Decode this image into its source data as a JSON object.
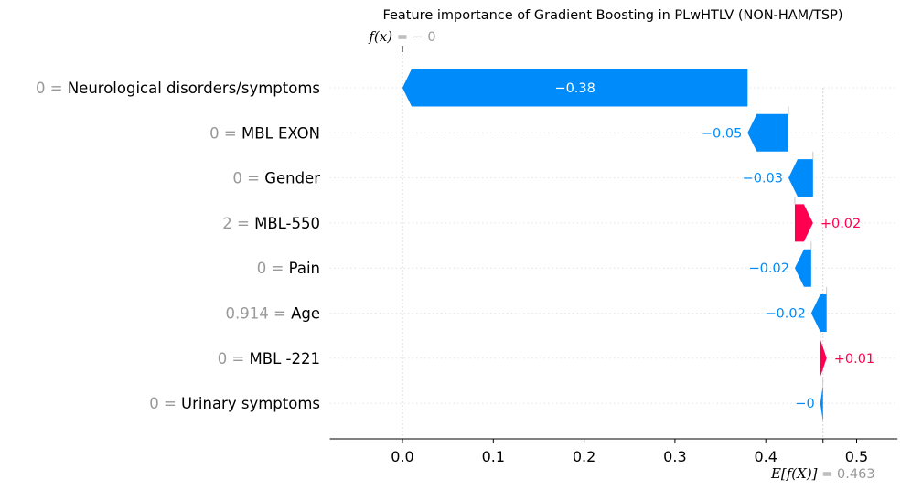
{
  "chart_data": {
    "type": "waterfall",
    "title": "Feature importance of Gradient Boosting in PLwHTLV (NON-HAM/TSP)",
    "base_value": 0.463,
    "output_value": 0,
    "xlim": [
      -0.08,
      0.545
    ],
    "ticks": [
      0.0,
      0.1,
      0.2,
      0.3,
      0.4,
      0.5
    ],
    "tick_labels": [
      "0.0",
      "0.1",
      "0.2",
      "0.3",
      "0.4",
      "0.5"
    ],
    "fx_label": {
      "expr": "f(x)",
      "value": "= − 0"
    },
    "ex_label": {
      "expr": "E[f(X)]",
      "value": "= 0.463"
    },
    "features": [
      {
        "value": "0 =",
        "name": "Neurological disorders/symptoms",
        "contribution": -0.38,
        "label": "−0.38"
      },
      {
        "value": "0 =",
        "name": "MBL EXON",
        "contribution": -0.045,
        "label": "−0.05"
      },
      {
        "value": "0 =",
        "name": "Gender",
        "contribution": -0.027,
        "label": "−0.03"
      },
      {
        "value": "2 =",
        "name": "MBL-550",
        "contribution": 0.02,
        "label": "+0.02"
      },
      {
        "value": "0 =",
        "name": "Pain",
        "contribution": -0.018,
        "label": "−0.02"
      },
      {
        "value": "0.914 =",
        "name": "Age",
        "contribution": -0.017,
        "label": "−0.02"
      },
      {
        "value": "0 =",
        "name": "MBL -221",
        "contribution": 0.007,
        "label": "+0.01"
      },
      {
        "value": "0 =",
        "name": "Urinary symptoms",
        "contribution": -0.003,
        "label": "−0"
      }
    ],
    "colors": {
      "positive": "#ff0051",
      "negative": "#008bfb",
      "positive_text": "#ff0051",
      "negative_text": "#008bfb",
      "muted": "#999999"
    }
  }
}
